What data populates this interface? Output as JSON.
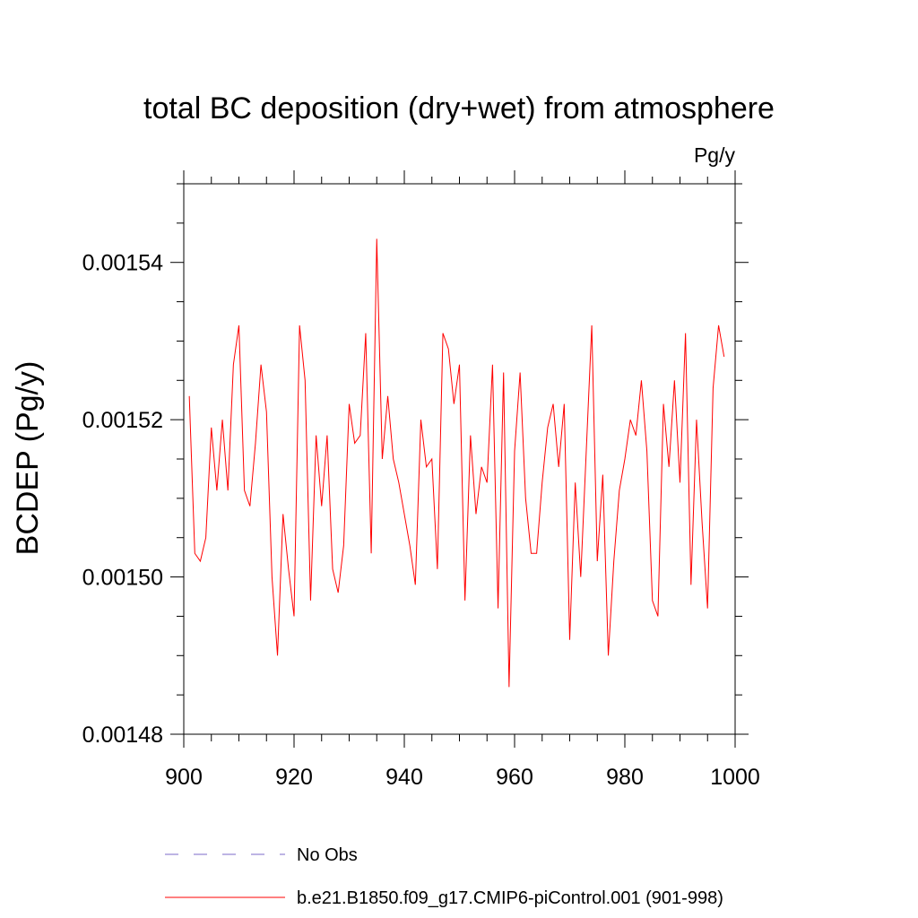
{
  "chart_data": {
    "type": "line",
    "title": "total BC deposition (dry+wet) from atmosphere",
    "units_label": "Pg/y",
    "ylabel": "BCDEP  (Pg/y)",
    "xlabel": "",
    "xlim": [
      900,
      1000
    ],
    "ylim": [
      0.00148,
      0.00155
    ],
    "x_ticks": [
      900,
      920,
      940,
      960,
      980,
      1000
    ],
    "x_tick_labels": [
      "900",
      "920",
      "940",
      "960",
      "980",
      "1000"
    ],
    "y_ticks": [
      0.00148,
      0.0015,
      0.00152,
      0.00154
    ],
    "y_tick_labels": [
      "0.00148",
      "0.00150",
      "0.00152",
      "0.00154"
    ],
    "grid": false,
    "legend_position": "bottom",
    "series": [
      {
        "name": "No Obs",
        "color": "#7b68c8",
        "style": "dashed",
        "x": [],
        "y": []
      },
      {
        "name": "b.e21.B1850.f09_g17.CMIP6-piControl.001 (901-998)",
        "color": "#ff0000",
        "style": "solid",
        "x": [
          901,
          902,
          903,
          904,
          905,
          906,
          907,
          908,
          909,
          910,
          911,
          912,
          913,
          914,
          915,
          916,
          917,
          918,
          919,
          920,
          921,
          922,
          923,
          924,
          925,
          926,
          927,
          928,
          929,
          930,
          931,
          932,
          933,
          934,
          935,
          936,
          937,
          938,
          939,
          940,
          941,
          942,
          943,
          944,
          945,
          946,
          947,
          948,
          949,
          950,
          951,
          952,
          953,
          954,
          955,
          956,
          957,
          958,
          959,
          960,
          961,
          962,
          963,
          964,
          965,
          966,
          967,
          968,
          969,
          970,
          971,
          972,
          973,
          974,
          975,
          976,
          977,
          978,
          979,
          980,
          981,
          982,
          983,
          984,
          985,
          986,
          987,
          988,
          989,
          990,
          991,
          992,
          993,
          994,
          995,
          996,
          997,
          998
        ],
        "y": [
          0.001523,
          0.001503,
          0.001502,
          0.001505,
          0.001519,
          0.001511,
          0.00152,
          0.001511,
          0.001527,
          0.001532,
          0.001511,
          0.001509,
          0.001517,
          0.001527,
          0.001521,
          0.0015,
          0.00149,
          0.001508,
          0.001501,
          0.001495,
          0.001532,
          0.001525,
          0.001497,
          0.001518,
          0.001509,
          0.001518,
          0.001501,
          0.001498,
          0.001504,
          0.001522,
          0.001517,
          0.001518,
          0.001531,
          0.001503,
          0.001543,
          0.001515,
          0.001523,
          0.001515,
          0.001512,
          0.001508,
          0.001504,
          0.001499,
          0.00152,
          0.001514,
          0.001515,
          0.001501,
          0.001531,
          0.001529,
          0.001522,
          0.001527,
          0.001497,
          0.001518,
          0.001508,
          0.001514,
          0.001512,
          0.001527,
          0.001496,
          0.001526,
          0.001486,
          0.001516,
          0.001526,
          0.00151,
          0.001503,
          0.001503,
          0.001512,
          0.001519,
          0.001522,
          0.001514,
          0.001522,
          0.001492,
          0.001512,
          0.0015,
          0.001516,
          0.001532,
          0.001502,
          0.001513,
          0.00149,
          0.001502,
          0.001511,
          0.001515,
          0.00152,
          0.001518,
          0.001525,
          0.001516,
          0.001497,
          0.001495,
          0.001522,
          0.001514,
          0.001525,
          0.001512,
          0.001531,
          0.001499,
          0.00152,
          0.001507,
          0.001496,
          0.001524,
          0.001532,
          0.001528
        ]
      }
    ]
  }
}
